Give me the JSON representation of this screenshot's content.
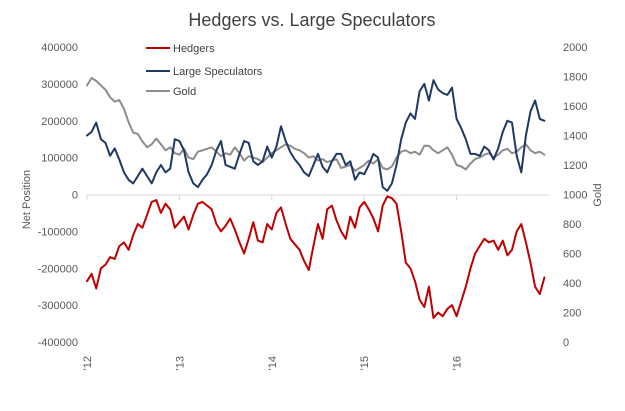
{
  "chart_data": {
    "type": "line",
    "title": "Hedgers vs. Large Speculators",
    "ylabel": "Net Position",
    "y2label": "Gold",
    "ylim": [
      -400000,
      400000
    ],
    "y2lim": [
      0,
      2000
    ],
    "yticks": [
      -400000,
      -300000,
      -200000,
      -100000,
      0,
      100000,
      200000,
      300000,
      400000
    ],
    "ytick_labels": [
      "-400000",
      "-300000",
      "-200000",
      "-100000",
      "0",
      "100000",
      "200000",
      "300000",
      "400000"
    ],
    "y2ticks": [
      0,
      200,
      400,
      600,
      800,
      1000,
      1200,
      1400,
      1600,
      1800,
      2000
    ],
    "y2tick_labels": [
      "0",
      "200",
      "400",
      "600",
      "800",
      "1000",
      "1200",
      "1400",
      "1600",
      "1800",
      "2000"
    ],
    "xlim": [
      2012.0,
      2017.0
    ],
    "xticks": [
      2012,
      2013,
      2014,
      2015,
      2016
    ],
    "xtick_labels": [
      "'12",
      "'13",
      "'14",
      "'15",
      "'16"
    ],
    "legend_position": "top-left",
    "grid": false,
    "series": [
      {
        "name": "Hedgers",
        "axis": "left",
        "color": "#c00000",
        "x": [
          2012.0,
          2012.05,
          2012.1,
          2012.15,
          2012.2,
          2012.25,
          2012.3,
          2012.35,
          2012.4,
          2012.45,
          2012.5,
          2012.55,
          2012.6,
          2012.65,
          2012.7,
          2012.75,
          2012.8,
          2012.85,
          2012.9,
          2012.95,
          2013.0,
          2013.05,
          2013.1,
          2013.15,
          2013.2,
          2013.25,
          2013.3,
          2013.35,
          2013.4,
          2013.45,
          2013.5,
          2013.55,
          2013.6,
          2013.65,
          2013.7,
          2013.75,
          2013.8,
          2013.85,
          2013.9,
          2013.95,
          2014.0,
          2014.05,
          2014.1,
          2014.15,
          2014.2,
          2014.25,
          2014.3,
          2014.35,
          2014.4,
          2014.45,
          2014.5,
          2014.55,
          2014.6,
          2014.65,
          2014.7,
          2014.75,
          2014.8,
          2014.85,
          2014.9,
          2014.95,
          2015.0,
          2015.05,
          2015.1,
          2015.15,
          2015.2,
          2015.25,
          2015.3,
          2015.35,
          2015.4,
          2015.45,
          2015.5,
          2015.55,
          2015.6,
          2015.65,
          2015.7,
          2015.75,
          2015.8,
          2015.85,
          2015.9,
          2015.95,
          2016.0,
          2016.05,
          2016.1,
          2016.15,
          2016.2,
          2016.25,
          2016.3,
          2016.35,
          2016.4,
          2016.45,
          2016.5,
          2016.55,
          2016.6,
          2016.65,
          2016.7,
          2016.75,
          2016.8,
          2016.85,
          2016.9,
          2016.95
        ],
        "values": [
          -235000,
          -215000,
          -255000,
          -200000,
          -190000,
          -170000,
          -175000,
          -140000,
          -130000,
          -150000,
          -110000,
          -80000,
          -90000,
          -55000,
          -20000,
          -15000,
          -50000,
          -25000,
          -40000,
          -90000,
          -75000,
          -60000,
          -95000,
          -55000,
          -25000,
          -20000,
          -30000,
          -40000,
          -80000,
          -100000,
          -85000,
          -65000,
          -95000,
          -130000,
          -160000,
          -120000,
          -75000,
          -125000,
          -130000,
          -80000,
          -95000,
          -50000,
          -35000,
          -80000,
          -120000,
          -135000,
          -150000,
          -180000,
          -205000,
          -140000,
          -80000,
          -120000,
          -40000,
          -30000,
          -70000,
          -100000,
          -120000,
          -60000,
          -90000,
          -35000,
          -20000,
          -40000,
          -65000,
          -100000,
          -30000,
          -5000,
          -10000,
          -25000,
          -100000,
          -185000,
          -200000,
          -235000,
          -285000,
          -305000,
          -250000,
          -335000,
          -320000,
          -330000,
          -310000,
          -300000,
          -330000,
          -290000,
          -250000,
          -200000,
          -160000,
          -140000,
          -120000,
          -130000,
          -125000,
          -150000,
          -125000,
          -165000,
          -150000,
          -100000,
          -80000,
          -130000,
          -185000,
          -250000,
          -270000,
          -225000
        ]
      },
      {
        "name": "Large Speculators",
        "axis": "left",
        "color": "#1f3864",
        "x": [
          2012.0,
          2012.05,
          2012.1,
          2012.15,
          2012.2,
          2012.25,
          2012.3,
          2012.35,
          2012.4,
          2012.45,
          2012.5,
          2012.55,
          2012.6,
          2012.65,
          2012.7,
          2012.75,
          2012.8,
          2012.85,
          2012.9,
          2012.95,
          2013.0,
          2013.05,
          2013.1,
          2013.15,
          2013.2,
          2013.25,
          2013.3,
          2013.35,
          2013.4,
          2013.45,
          2013.5,
          2013.55,
          2013.6,
          2013.65,
          2013.7,
          2013.75,
          2013.8,
          2013.85,
          2013.9,
          2013.95,
          2014.0,
          2014.05,
          2014.1,
          2014.15,
          2014.2,
          2014.25,
          2014.3,
          2014.35,
          2014.4,
          2014.45,
          2014.5,
          2014.55,
          2014.6,
          2014.65,
          2014.7,
          2014.75,
          2014.8,
          2014.85,
          2014.9,
          2014.95,
          2015.0,
          2015.05,
          2015.1,
          2015.15,
          2015.2,
          2015.25,
          2015.3,
          2015.35,
          2015.4,
          2015.45,
          2015.5,
          2015.55,
          2015.6,
          2015.65,
          2015.7,
          2015.75,
          2015.8,
          2015.85,
          2015.9,
          2015.95,
          2016.0,
          2016.05,
          2016.1,
          2016.15,
          2016.2,
          2016.25,
          2016.3,
          2016.35,
          2016.4,
          2016.45,
          2016.5,
          2016.55,
          2016.6,
          2016.65,
          2016.7,
          2016.75,
          2016.8,
          2016.85,
          2016.9,
          2016.95
        ],
        "values": [
          160000,
          170000,
          195000,
          150000,
          140000,
          105000,
          125000,
          95000,
          60000,
          40000,
          30000,
          50000,
          70000,
          50000,
          30000,
          60000,
          80000,
          60000,
          70000,
          150000,
          145000,
          120000,
          60000,
          30000,
          20000,
          40000,
          55000,
          80000,
          120000,
          145000,
          80000,
          75000,
          70000,
          110000,
          145000,
          140000,
          90000,
          80000,
          90000,
          130000,
          100000,
          130000,
          185000,
          145000,
          115000,
          95000,
          80000,
          60000,
          50000,
          80000,
          110000,
          75000,
          60000,
          90000,
          110000,
          110000,
          80000,
          90000,
          40000,
          60000,
          55000,
          80000,
          110000,
          100000,
          20000,
          10000,
          30000,
          80000,
          150000,
          195000,
          220000,
          205000,
          280000,
          300000,
          255000,
          310000,
          285000,
          275000,
          270000,
          290000,
          205000,
          180000,
          150000,
          110000,
          110000,
          105000,
          130000,
          120000,
          95000,
          125000,
          170000,
          200000,
          195000,
          105000,
          60000,
          160000,
          225000,
          255000,
          205000,
          200000
        ]
      },
      {
        "name": "Gold",
        "axis": "right",
        "color": "#8c8c8c",
        "x": [
          2012.0,
          2012.05,
          2012.1,
          2012.15,
          2012.2,
          2012.25,
          2012.3,
          2012.35,
          2012.4,
          2012.45,
          2012.5,
          2012.55,
          2012.6,
          2012.65,
          2012.7,
          2012.75,
          2012.8,
          2012.85,
          2012.9,
          2012.95,
          2013.0,
          2013.05,
          2013.1,
          2013.15,
          2013.2,
          2013.25,
          2013.3,
          2013.35,
          2013.4,
          2013.45,
          2013.5,
          2013.55,
          2013.6,
          2013.65,
          2013.7,
          2013.75,
          2013.8,
          2013.85,
          2013.9,
          2013.95,
          2014.0,
          2014.05,
          2014.1,
          2014.15,
          2014.2,
          2014.25,
          2014.3,
          2014.35,
          2014.4,
          2014.45,
          2014.5,
          2014.55,
          2014.6,
          2014.65,
          2014.7,
          2014.75,
          2014.8,
          2014.85,
          2014.9,
          2014.95,
          2015.0,
          2015.05,
          2015.1,
          2015.15,
          2015.2,
          2015.25,
          2015.3,
          2015.35,
          2015.4,
          2015.45,
          2015.5,
          2015.55,
          2015.6,
          2015.65,
          2015.7,
          2015.75,
          2015.8,
          2015.85,
          2015.9,
          2015.95,
          2016.0,
          2016.05,
          2016.1,
          2016.15,
          2016.2,
          2016.25,
          2016.3,
          2016.35,
          2016.4,
          2016.45,
          2016.5,
          2016.55,
          2016.6,
          2016.65,
          2016.7,
          2016.75,
          2016.8,
          2016.85,
          2016.9,
          2016.95
        ],
        "values": [
          1740,
          1790,
          1770,
          1740,
          1710,
          1660,
          1630,
          1640,
          1580,
          1490,
          1420,
          1410,
          1360,
          1320,
          1340,
          1380,
          1340,
          1300,
          1320,
          1280,
          1270,
          1310,
          1250,
          1240,
          1290,
          1300,
          1310,
          1320,
          1290,
          1260,
          1280,
          1270,
          1320,
          1280,
          1230,
          1260,
          1250,
          1240,
          1220,
          1250,
          1280,
          1300,
          1320,
          1340,
          1330,
          1310,
          1300,
          1280,
          1250,
          1260,
          1230,
          1240,
          1220,
          1230,
          1240,
          1180,
          1190,
          1200,
          1160,
          1180,
          1200,
          1230,
          1210,
          1240,
          1180,
          1170,
          1190,
          1250,
          1290,
          1300,
          1280,
          1290,
          1270,
          1330,
          1330,
          1300,
          1280,
          1300,
          1320,
          1270,
          1200,
          1190,
          1170,
          1210,
          1240,
          1250,
          1270,
          1280,
          1250,
          1270,
          1300,
          1310,
          1280,
          1290,
          1320,
          1340,
          1300,
          1280,
          1290,
          1270
        ]
      }
    ]
  }
}
